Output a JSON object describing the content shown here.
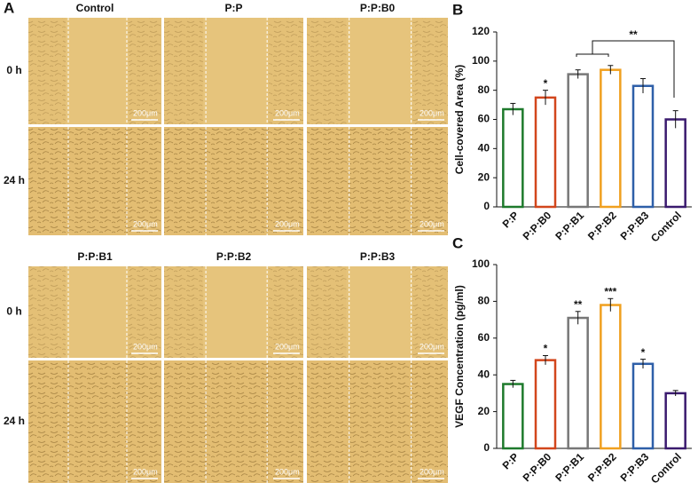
{
  "panel_a": {
    "label": "A",
    "groups": [
      {
        "columns": [
          "Control",
          "P:P",
          "P:P:B0"
        ]
      },
      {
        "columns": [
          "P:P:B1",
          "P:P:B2",
          "P:P:B3"
        ]
      }
    ],
    "rows": [
      "0 h",
      "24 h"
    ],
    "scale_bar": "200μm"
  },
  "chart_data": [
    {
      "type": "bar",
      "label": "B",
      "y_label": "Cell-covered Area (%)",
      "categories": [
        "P:P",
        "P:P:B0",
        "P:P:B1",
        "P:P:B2",
        "P:P:B3",
        "Control"
      ],
      "values": [
        67,
        75,
        91,
        94,
        83,
        60
      ],
      "errors": [
        4,
        5,
        3,
        3,
        5,
        6
      ],
      "colors": [
        "#1e7a2c",
        "#d2461c",
        "#777777",
        "#f0a020",
        "#2e5fa8",
        "#3a1a6e"
      ],
      "significance": [
        null,
        "*",
        null,
        null,
        null,
        null
      ],
      "bracket_label": "**",
      "ylim": [
        0,
        120
      ],
      "yticks": [
        0,
        20,
        40,
        60,
        80,
        100,
        120
      ]
    },
    {
      "type": "bar",
      "label": "C",
      "y_label": "VEGF Concentration (pg/ml)",
      "categories": [
        "P:P",
        "P:P:B0",
        "P:P:B1",
        "P:P:B2",
        "P:P:B3",
        "Control"
      ],
      "values": [
        35,
        48,
        71,
        78,
        46,
        30
      ],
      "errors": [
        2,
        2.5,
        3.5,
        3.5,
        2.5,
        1.5
      ],
      "colors": [
        "#1e7a2c",
        "#d2461c",
        "#777777",
        "#f0a020",
        "#2e5fa8",
        "#3a1a6e"
      ],
      "significance": [
        null,
        "*",
        "**",
        "***",
        "*",
        null
      ],
      "ylim": [
        0,
        100
      ],
      "yticks": [
        0,
        20,
        40,
        60,
        80,
        100
      ]
    }
  ]
}
